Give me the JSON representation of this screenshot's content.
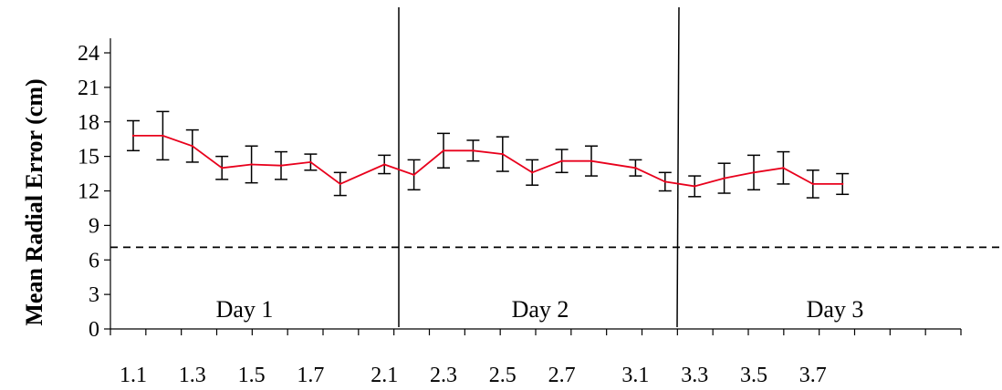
{
  "chart_data": {
    "type": "line",
    "ylabel": "Mean Radial Error (cm)",
    "xlabel": "",
    "ylim": [
      0,
      25.5
    ],
    "yticks": [
      0,
      3,
      6,
      9,
      12,
      15,
      18,
      21,
      24
    ],
    "x_tick_labels": [
      "1.1",
      "1.3",
      "1.5",
      "1.7",
      "2.1",
      "2.3",
      "2.5",
      "2.7",
      "3.1",
      "3.3",
      "3.5",
      "3.7"
    ],
    "reference_line": {
      "y": 7.1,
      "style": "dashed"
    },
    "day_labels": [
      "Day 1",
      "Day 2",
      "Day 3"
    ],
    "series": [
      {
        "color": "#e8001c",
        "x": [
          "1.1",
          "1.2",
          "1.3",
          "1.4",
          "1.5",
          "1.6",
          "1.7",
          "1.8",
          "2.1",
          "2.2",
          "2.3",
          "2.4",
          "2.5",
          "2.6",
          "2.7",
          "2.8",
          "3.1",
          "3.2",
          "3.3",
          "3.4",
          "3.5",
          "3.6",
          "3.7",
          "3.8"
        ],
        "values": [
          16.8,
          16.8,
          15.9,
          14.0,
          14.3,
          14.2,
          14.5,
          12.6,
          14.3,
          13.4,
          15.5,
          15.5,
          15.2,
          13.6,
          14.6,
          14.6,
          14.0,
          12.8,
          12.4,
          13.1,
          13.6,
          14.0,
          12.6,
          12.6
        ],
        "error": [
          1.3,
          2.1,
          1.4,
          1.0,
          1.6,
          1.2,
          0.7,
          1.0,
          0.8,
          1.3,
          1.5,
          0.9,
          1.5,
          1.1,
          1.0,
          1.3,
          0.7,
          0.8,
          0.9,
          1.3,
          1.5,
          1.4,
          1.2,
          0.9
        ]
      }
    ]
  }
}
